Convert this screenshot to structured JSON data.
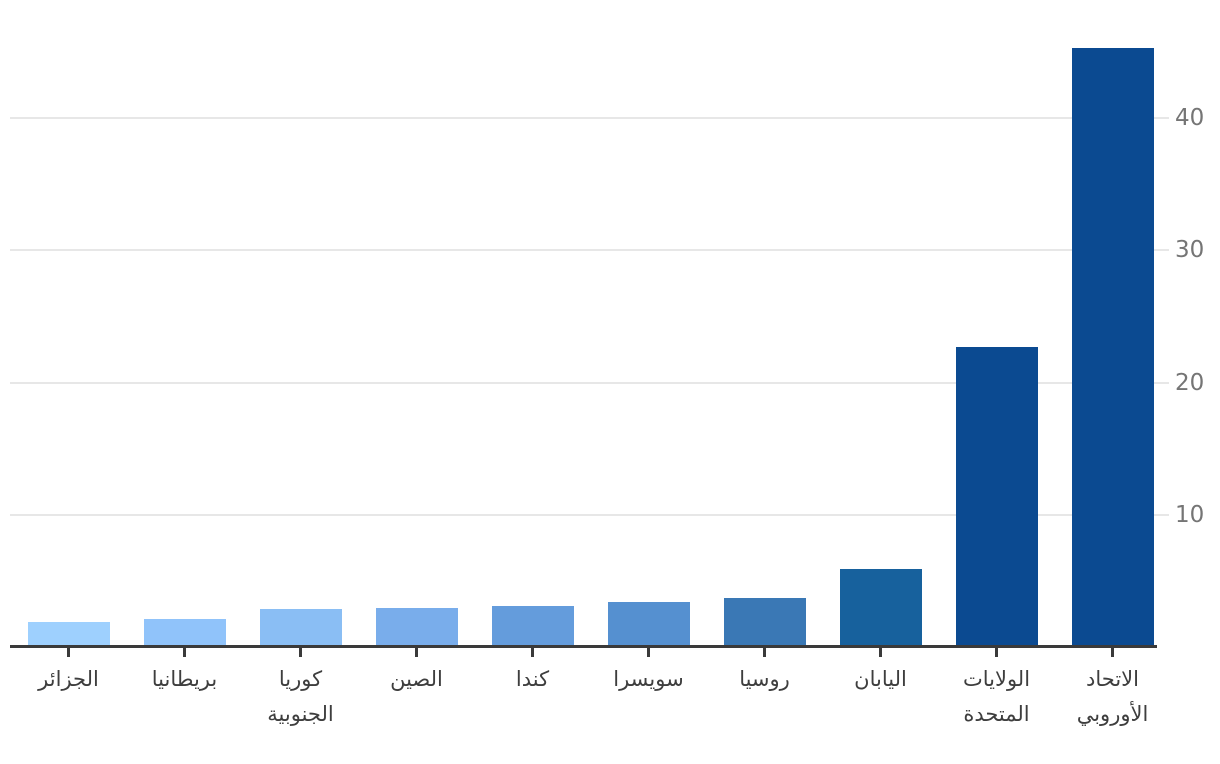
{
  "chart_data": {
    "type": "bar",
    "title": "",
    "xlabel": "",
    "ylabel": "",
    "order_note": "bars displayed left-to-right in ascending value; Arabic RTL category labels; y axis on right side",
    "categories": [
      "الجزائر",
      "بريطانيا",
      "كوريا الجنوبية",
      "الصين",
      "كندا",
      "سويسرا",
      "روسيا",
      "اليابان",
      "الولايات المتحدة",
      "الاتحاد الأوروبي"
    ],
    "category_ids": [
      "algeria",
      "britain",
      "south-korea",
      "china",
      "canada",
      "switzerland",
      "russia",
      "japan",
      "united-states",
      "european-union"
    ],
    "label_lines": [
      [
        "الجزائر"
      ],
      [
        "بريطانيا"
      ],
      [
        "كوريا",
        "الجنوبية"
      ],
      [
        "الصين"
      ],
      [
        "كندا"
      ],
      [
        "سويسرا"
      ],
      [
        "روسيا"
      ],
      [
        "اليابان"
      ],
      [
        "الولايات",
        "المتحدة"
      ],
      [
        "الاتحاد",
        "الأوروبي"
      ]
    ],
    "values": [
      1.9,
      2.1,
      2.9,
      3.0,
      3.1,
      3.4,
      3.7,
      5.9,
      22.7,
      45.3
    ],
    "bar_colors": [
      "#9ed0fe",
      "#90c3fa",
      "#8abef4",
      "#79adeb",
      "#649cdc",
      "#5590d0",
      "#3a78b5",
      "#17619d",
      "#0b4a91",
      "#0b4a91"
    ],
    "yticks": [
      10,
      20,
      30,
      40
    ],
    "ytick_labels": [
      "10",
      "20",
      "30",
      "40"
    ],
    "ylim": [
      0,
      46.5
    ],
    "grid": true,
    "legend": "none",
    "y_axis_side": "right",
    "colors": {
      "background": "#ffffff",
      "gridline": "#e7e7e7",
      "axis_line": "#3a3a3a",
      "y_tick_label": "#757575",
      "x_tick_label": "#3e3e3e"
    }
  }
}
